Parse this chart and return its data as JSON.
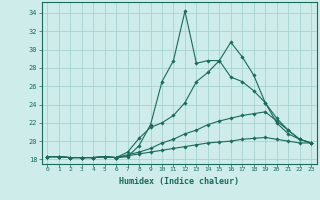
{
  "xlabel": "Humidex (Indice chaleur)",
  "xlim": [
    -0.5,
    23.5
  ],
  "ylim": [
    17.5,
    35.2
  ],
  "yticks": [
    18,
    20,
    22,
    24,
    26,
    28,
    30,
    32,
    34
  ],
  "xticks": [
    0,
    1,
    2,
    3,
    4,
    5,
    6,
    7,
    8,
    9,
    10,
    11,
    12,
    13,
    14,
    15,
    16,
    17,
    18,
    19,
    20,
    21,
    22,
    23
  ],
  "background_color": "#ceecea",
  "grid_color": "#9ecfcc",
  "line_color": "#1a6b5a",
  "series": [
    [
      18.3,
      18.3,
      18.2,
      18.2,
      18.2,
      18.3,
      18.2,
      18.3,
      19.5,
      21.8,
      26.5,
      28.8,
      34.2,
      28.5,
      28.8,
      28.8,
      30.8,
      29.2,
      27.2,
      24.2,
      22.0,
      20.8,
      20.2,
      19.8
    ],
    [
      18.3,
      18.3,
      18.2,
      18.2,
      18.2,
      18.3,
      18.2,
      18.8,
      20.3,
      21.5,
      22.0,
      22.8,
      24.2,
      26.5,
      27.5,
      28.8,
      27.0,
      26.5,
      25.5,
      24.2,
      22.5,
      21.2,
      20.2,
      19.8
    ],
    [
      18.3,
      18.3,
      18.2,
      18.2,
      18.2,
      18.3,
      18.2,
      18.5,
      18.8,
      19.2,
      19.8,
      20.2,
      20.8,
      21.2,
      21.8,
      22.2,
      22.5,
      22.8,
      23.0,
      23.2,
      22.2,
      21.2,
      20.2,
      19.8
    ],
    [
      18.3,
      18.3,
      18.2,
      18.2,
      18.2,
      18.3,
      18.2,
      18.4,
      18.6,
      18.8,
      19.0,
      19.2,
      19.4,
      19.6,
      19.8,
      19.9,
      20.0,
      20.2,
      20.3,
      20.4,
      20.2,
      20.0,
      19.8,
      19.8
    ]
  ]
}
